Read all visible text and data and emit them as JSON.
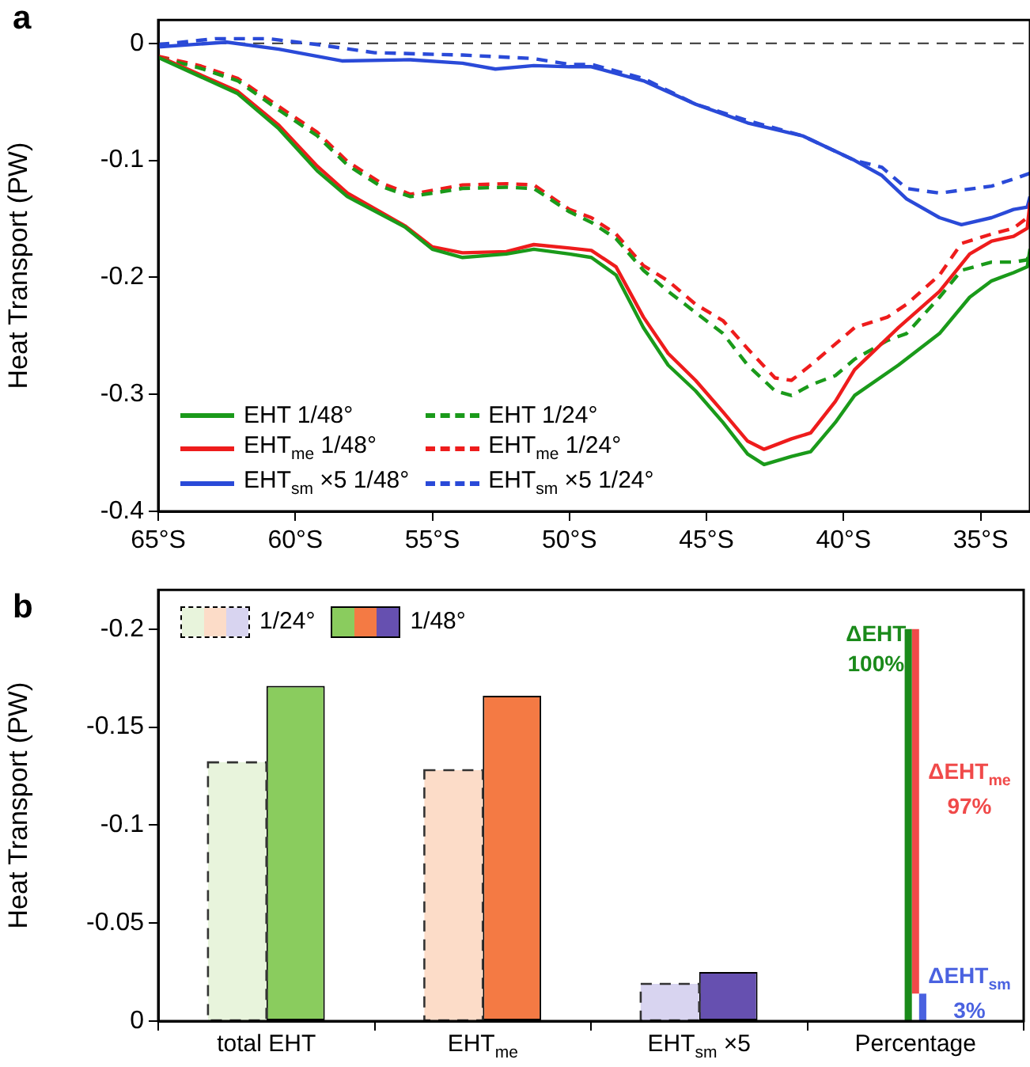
{
  "chart_data": [
    {
      "type": "line",
      "title": "a",
      "ylabel": "Heat Transport (PW)",
      "xlim": [
        -65,
        -33.2
      ],
      "xticks": [
        {
          "value": -65,
          "label": "65°S"
        },
        {
          "value": -60,
          "label": "60°S"
        },
        {
          "value": -55,
          "label": "55°S"
        },
        {
          "value": -50,
          "label": "50°S"
        },
        {
          "value": -45,
          "label": "45°S"
        },
        {
          "value": -40,
          "label": "40°S"
        },
        {
          "value": -35,
          "label": "35°S"
        }
      ],
      "ylim": [
        -0.4,
        0.02
      ],
      "yticks": [
        0,
        -0.1,
        -0.2,
        -0.3,
        -0.4
      ],
      "legend": "bottom left",
      "ref_lines": [
        {
          "axis": "y",
          "value": 0,
          "color": "#333333",
          "line_style": "dashed"
        }
      ],
      "series": [
        {
          "name": "EHT 1/48°",
          "color": "#1a9a1a",
          "line_style": "solid",
          "x": [
            -65.0,
            -62.1,
            -60.6,
            -59.2,
            -58.1,
            -56.0,
            -55.0,
            -53.9,
            -52.3,
            -51.3,
            -50.0,
            -49.2,
            -48.3,
            -47.3,
            -46.4,
            -45.4,
            -44.4,
            -43.5,
            -42.9,
            -41.9,
            -41.2,
            -40.3,
            -39.6,
            -38.0,
            -36.5,
            -35.4,
            -34.6,
            -33.8,
            -33.3,
            -33.2
          ],
          "values": [
            -0.012,
            -0.043,
            -0.073,
            -0.109,
            -0.131,
            -0.157,
            -0.176,
            -0.183,
            -0.18,
            -0.176,
            -0.18,
            -0.183,
            -0.198,
            -0.243,
            -0.275,
            -0.297,
            -0.324,
            -0.351,
            -0.36,
            -0.353,
            -0.349,
            -0.324,
            -0.301,
            -0.275,
            -0.248,
            -0.217,
            -0.203,
            -0.196,
            -0.191,
            -0.176
          ]
        },
        {
          "name": "EHT$_{me}$ 1/48°",
          "color": "#ee1c1c",
          "line_style": "solid",
          "x": [
            -65.0,
            -62.1,
            -60.6,
            -59.2,
            -58.1,
            -56.0,
            -55.0,
            -53.9,
            -52.3,
            -51.3,
            -50.0,
            -49.2,
            -48.3,
            -47.3,
            -46.4,
            -45.4,
            -44.4,
            -43.5,
            -42.9,
            -41.9,
            -41.2,
            -40.3,
            -39.6,
            -38.0,
            -36.5,
            -35.4,
            -34.6,
            -33.8,
            -33.3,
            -33.2
          ],
          "values": [
            -0.011,
            -0.041,
            -0.07,
            -0.105,
            -0.128,
            -0.156,
            -0.174,
            -0.179,
            -0.178,
            -0.172,
            -0.175,
            -0.177,
            -0.191,
            -0.234,
            -0.265,
            -0.288,
            -0.315,
            -0.34,
            -0.347,
            -0.338,
            -0.333,
            -0.306,
            -0.279,
            -0.243,
            -0.212,
            -0.18,
            -0.169,
            -0.165,
            -0.158,
            -0.136
          ]
        },
        {
          "name": "EHT$_{sm}$ ×5 1/48°",
          "color": "#2a4ad8",
          "line_style": "solid",
          "x": [
            -65.0,
            -62.5,
            -60.6,
            -58.3,
            -55.8,
            -53.9,
            -52.7,
            -51.3,
            -50.0,
            -49.2,
            -47.3,
            -45.4,
            -43.5,
            -41.5,
            -39.6,
            -38.6,
            -37.7,
            -36.5,
            -35.7,
            -34.6,
            -33.8,
            -33.3,
            -33.2
          ],
          "values": [
            -0.003,
            0.001,
            -0.005,
            -0.015,
            -0.014,
            -0.017,
            -0.022,
            -0.019,
            -0.02,
            -0.02,
            -0.032,
            -0.052,
            -0.068,
            -0.079,
            -0.1,
            -0.113,
            -0.133,
            -0.149,
            -0.155,
            -0.149,
            -0.142,
            -0.14,
            -0.131
          ]
        },
        {
          "name": "EHT 1/24°",
          "color": "#1a9a1a",
          "line_style": "dashed",
          "x": [
            -65.0,
            -63.5,
            -62.1,
            -60.6,
            -59.2,
            -58.1,
            -56.9,
            -55.8,
            -53.9,
            -52.3,
            -51.3,
            -50.0,
            -49.2,
            -48.3,
            -47.3,
            -46.4,
            -45.4,
            -44.4,
            -43.5,
            -42.5,
            -41.9,
            -41.2,
            -40.3,
            -39.6,
            -38.4,
            -37.7,
            -36.5,
            -35.7,
            -34.6,
            -33.8,
            -33.3,
            -33.2
          ],
          "values": [
            -0.012,
            -0.021,
            -0.032,
            -0.057,
            -0.079,
            -0.104,
            -0.122,
            -0.131,
            -0.124,
            -0.123,
            -0.124,
            -0.144,
            -0.153,
            -0.167,
            -0.194,
            -0.212,
            -0.23,
            -0.248,
            -0.275,
            -0.297,
            -0.301,
            -0.292,
            -0.284,
            -0.27,
            -0.254,
            -0.248,
            -0.217,
            -0.194,
            -0.187,
            -0.187,
            -0.185,
            -0.176
          ]
        },
        {
          "name": "EHT$_{me}$ 1/24°",
          "color": "#ee1c1c",
          "line_style": "dashed",
          "x": [
            -65.0,
            -63.5,
            -62.1,
            -60.6,
            -59.2,
            -58.1,
            -56.9,
            -55.8,
            -53.9,
            -52.3,
            -51.3,
            -50.0,
            -49.2,
            -48.3,
            -47.3,
            -46.4,
            -45.4,
            -44.4,
            -43.5,
            -42.5,
            -41.9,
            -41.2,
            -40.3,
            -39.6,
            -38.4,
            -37.7,
            -36.5,
            -35.7,
            -34.6,
            -33.8,
            -33.3,
            -33.2
          ],
          "values": [
            -0.011,
            -0.019,
            -0.03,
            -0.054,
            -0.076,
            -0.101,
            -0.119,
            -0.129,
            -0.121,
            -0.12,
            -0.121,
            -0.142,
            -0.149,
            -0.163,
            -0.19,
            -0.203,
            -0.223,
            -0.237,
            -0.261,
            -0.286,
            -0.288,
            -0.275,
            -0.257,
            -0.243,
            -0.234,
            -0.223,
            -0.198,
            -0.171,
            -0.163,
            -0.158,
            -0.149,
            -0.144
          ]
        },
        {
          "name": "EHT$_{sm}$ ×5 1/24°",
          "color": "#2a4ad8",
          "line_style": "dashed",
          "x": [
            -65.0,
            -62.9,
            -61.0,
            -59.2,
            -57.1,
            -53.9,
            -51.3,
            -50.0,
            -49.2,
            -47.3,
            -45.4,
            -43.5,
            -41.5,
            -39.6,
            -38.6,
            -37.7,
            -36.5,
            -34.6,
            -33.8,
            -33.2
          ],
          "values": [
            -0.001,
            0.004,
            0.004,
            -0.001,
            -0.008,
            -0.01,
            -0.013,
            -0.018,
            -0.018,
            -0.03,
            -0.052,
            -0.066,
            -0.079,
            -0.1,
            -0.106,
            -0.124,
            -0.128,
            -0.122,
            -0.116,
            -0.111
          ]
        }
      ]
    },
    {
      "type": "bar",
      "title": "b",
      "ylabel": "Heat Transport (PW)",
      "categories": [
        "total EHT",
        "EHT$_{me}$",
        "EHT$_{sm}$ ×5",
        "Percentage"
      ],
      "ylim": [
        0,
        -0.22
      ],
      "yticks": [
        0,
        -0.05,
        -0.1,
        -0.15,
        -0.2
      ],
      "legend": "top left",
      "annotations": [
        {
          "text": "ΔEHT\n100%",
          "x": "Percentage",
          "y": -0.19
        },
        {
          "text": "ΔEHT$_{me}$\n97%",
          "x": "Percentage",
          "y": -0.118
        },
        {
          "text": "ΔEHT$_{sm}$\n3%",
          "x": "Percentage",
          "y": -0.014
        }
      ],
      "series": [
        {
          "name": "1/24°",
          "line_style": "dashed",
          "colors": [
            "#e8f4dc",
            "#fcdcc8",
            "#d8d4f0",
            null
          ],
          "values": [
            -0.132,
            -0.128,
            -0.019,
            null
          ]
        },
        {
          "name": "1/48°",
          "line_style": "solid",
          "colors": [
            "#8acc5e",
            "#f47a44",
            "#6650b0",
            null
          ],
          "values": [
            -0.171,
            -0.166,
            -0.025,
            null
          ]
        },
        {
          "color": "#1a8a1a",
          "base": [
            null,
            null,
            null,
            0
          ],
          "values": [
            null,
            null,
            null,
            -0.2
          ]
        },
        {
          "color": "#f04a4a",
          "base": [
            null,
            null,
            null,
            -0.014
          ],
          "values": [
            null,
            null,
            null,
            -0.186
          ]
        },
        {
          "color": "#4a62e0",
          "base": [
            null,
            null,
            null,
            0
          ],
          "values": [
            null,
            null,
            null,
            -0.014
          ]
        }
      ]
    }
  ]
}
